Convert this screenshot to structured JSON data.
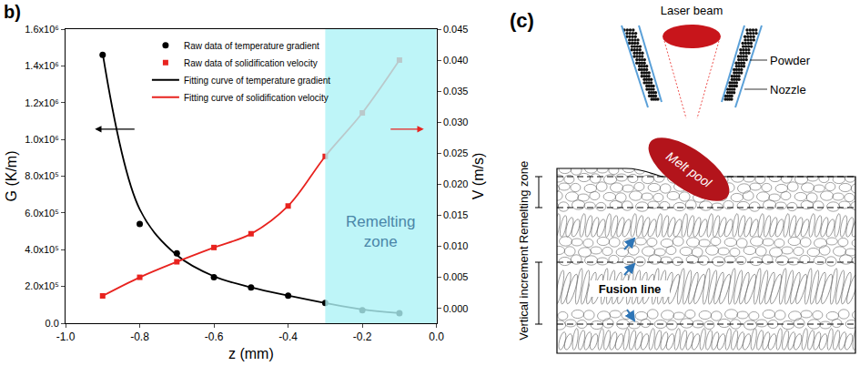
{
  "chart_data": {
    "type": "scatter",
    "panel_label": "b)",
    "x_label": "z (mm)",
    "y_label": "G (K/m)",
    "y2_label": "V (m/s)",
    "x": [
      -0.9,
      -0.8,
      -0.7,
      -0.6,
      -0.5,
      -0.4,
      -0.3,
      -0.2,
      -0.1
    ],
    "xlim": [
      -1.0,
      0.0
    ],
    "xticks": [
      {
        "value": -1.0,
        "label": "-1.0"
      },
      {
        "value": -0.8,
        "label": "-0.8"
      },
      {
        "value": -0.6,
        "label": "-0.6"
      },
      {
        "value": -0.4,
        "label": "-0.4"
      },
      {
        "value": -0.2,
        "label": "-0.2"
      },
      {
        "value": 0.0,
        "label": "0.0"
      }
    ],
    "ylim": [
      0,
      1600000
    ],
    "yticks": [
      {
        "value": 0,
        "label": "0.0"
      },
      {
        "value": 200000,
        "label": "2.0x10⁵"
      },
      {
        "value": 400000,
        "label": "4.0x10⁵"
      },
      {
        "value": 600000,
        "label": "6.0x10⁵"
      },
      {
        "value": 800000,
        "label": "8.0x10⁵"
      },
      {
        "value": 1000000,
        "label": "1.0x10⁶"
      },
      {
        "value": 1200000,
        "label": "1.2x10⁶"
      },
      {
        "value": 1400000,
        "label": "1.4x10⁶"
      },
      {
        "value": 1600000,
        "label": "1.6x10⁶"
      }
    ],
    "y2lim": [
      -0.0024,
      0.045
    ],
    "y2ticks": [
      {
        "value": 0.0,
        "label": "0.000"
      },
      {
        "value": 0.005,
        "label": "0.005"
      },
      {
        "value": 0.01,
        "label": "0.010"
      },
      {
        "value": 0.015,
        "label": "0.015"
      },
      {
        "value": 0.02,
        "label": "0.020"
      },
      {
        "value": 0.025,
        "label": "0.025"
      },
      {
        "value": 0.03,
        "label": "0.030"
      },
      {
        "value": 0.035,
        "label": "0.035"
      },
      {
        "value": 0.04,
        "label": "0.040"
      },
      {
        "value": 0.045,
        "label": "0.045"
      }
    ],
    "series": [
      {
        "name": "Raw data of temperature gradient",
        "type": "scatter",
        "marker": "circle",
        "color": "#000000",
        "values": [
          1460000,
          540000,
          380000,
          250000,
          195000,
          150000,
          110000,
          70000,
          55000
        ]
      },
      {
        "name": "Raw data of solidification velocity",
        "type": "scatter",
        "marker": "square",
        "color": "#e8231f",
        "axis": "y2",
        "values": [
          0.002,
          0.005,
          0.0075,
          0.0098,
          0.012,
          0.0165,
          0.0245,
          0.0315,
          0.04
        ]
      },
      {
        "name": "Fitting curve of temperature gradient",
        "type": "line",
        "line_style": "solid",
        "color": "#000000",
        "values": [
          1470000,
          620000,
          370000,
          255000,
          195000,
          150000,
          110000,
          75000,
          55000
        ]
      },
      {
        "name": "Fitting curve of solidification velocity",
        "type": "line",
        "line_style": "solid",
        "color": "#e8231f",
        "axis": "y2",
        "values": [
          0.002,
          0.005,
          0.0075,
          0.0098,
          0.012,
          0.0165,
          0.0245,
          0.0315,
          0.04
        ]
      }
    ],
    "regions": [
      {
        "x0": -0.3,
        "x1": 0.0,
        "label": "Remelting zone",
        "color": "#aef2f6"
      }
    ],
    "legend": "upper left",
    "grid": false
  },
  "diagram": {
    "label": "(c)",
    "laser": "Laser beam",
    "powder": "Powder",
    "nozzle": "Nozzle",
    "melt_pool": "Melt pool",
    "remelting_zone": "Remelting zone",
    "vertical_increment": "Vertical increment",
    "fusion_line": "Fusion line"
  }
}
